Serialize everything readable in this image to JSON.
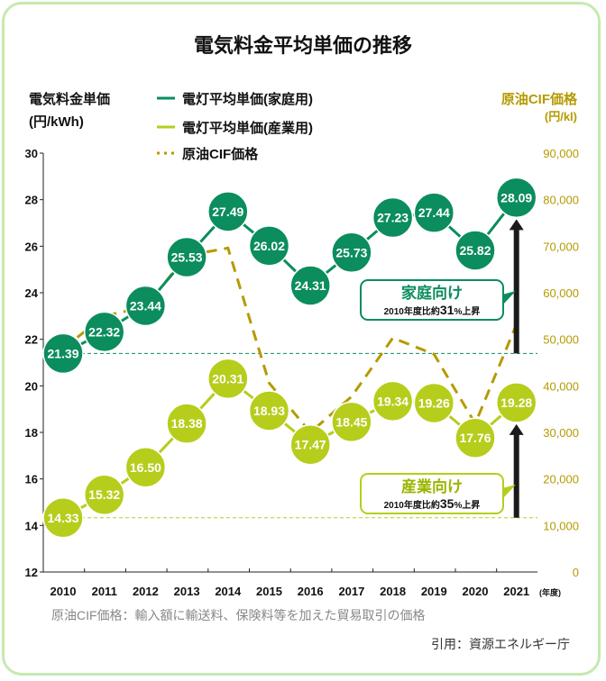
{
  "chart_data": {
    "type": "line",
    "title": "電気料金平均単価の推移",
    "ylabel_left": [
      "電気料金単価",
      "(円/kWh)"
    ],
    "ylabel_right": [
      "原油CIF価格",
      "(円/kl)"
    ],
    "x_unit": "(年度)",
    "categories": [
      "2010",
      "2011",
      "2012",
      "2013",
      "2014",
      "2015",
      "2016",
      "2017",
      "2018",
      "2019",
      "2020",
      "2021"
    ],
    "ylim_left": [
      12,
      30
    ],
    "yticks_left": [
      "12",
      "14",
      "16",
      "18",
      "20",
      "22",
      "24",
      "26",
      "28",
      "30"
    ],
    "ylim_right": [
      0,
      90000
    ],
    "yticks_right": [
      "0",
      "10,000",
      "20,000",
      "30,000",
      "40,000",
      "50,000",
      "60,000",
      "70,000",
      "80,000",
      "90,000"
    ],
    "legend_placement": "top",
    "series": [
      {
        "name": "電灯平均単価(家庭用)",
        "axis": "left",
        "color": "#0b8d5d",
        "values": [
          21.39,
          22.32,
          23.44,
          25.53,
          27.49,
          26.02,
          24.31,
          25.73,
          27.23,
          27.44,
          25.82,
          28.09
        ],
        "labels": [
          "21.39",
          "22.32",
          "23.44",
          "25.53",
          "27.49",
          "26.02",
          "24.31",
          "25.73",
          "27.23",
          "27.44",
          "25.82",
          "28.09"
        ]
      },
      {
        "name": "電灯平均単価(産業用)",
        "axis": "left",
        "color": "#b6cd1c",
        "values": [
          14.33,
          15.32,
          16.5,
          18.38,
          20.31,
          18.93,
          17.47,
          18.45,
          19.34,
          19.26,
          17.76,
          19.28
        ],
        "labels": [
          "14.33",
          "15.32",
          "16.50",
          "18.38",
          "20.31",
          "18.93",
          "17.47",
          "18.45",
          "19.34",
          "19.26",
          "17.76",
          "19.28"
        ]
      },
      {
        "name": "原油CIF価格",
        "axis": "right",
        "color": "#b59a00",
        "dashed": true,
        "values": [
          48000,
          55000,
          57000,
          68000,
          69600,
          40600,
          30000,
          37700,
          50300,
          46800,
          31900,
          53200
        ]
      }
    ],
    "annotations": [
      {
        "title": "家庭向け",
        "prefix": "2010年度比約",
        "pct": "31",
        "suffix": "%上昇",
        "color": "#0b8d5d"
      },
      {
        "title": "産業向け",
        "prefix": "2010年度比約",
        "pct": "35",
        "suffix": "%上昇",
        "color": "#b6cd1c"
      }
    ],
    "note": "原油CIF価格：輸入額に輸送料、保険料等を加えた貿易取引の価格",
    "source": "引用：資源エネルギー庁"
  }
}
